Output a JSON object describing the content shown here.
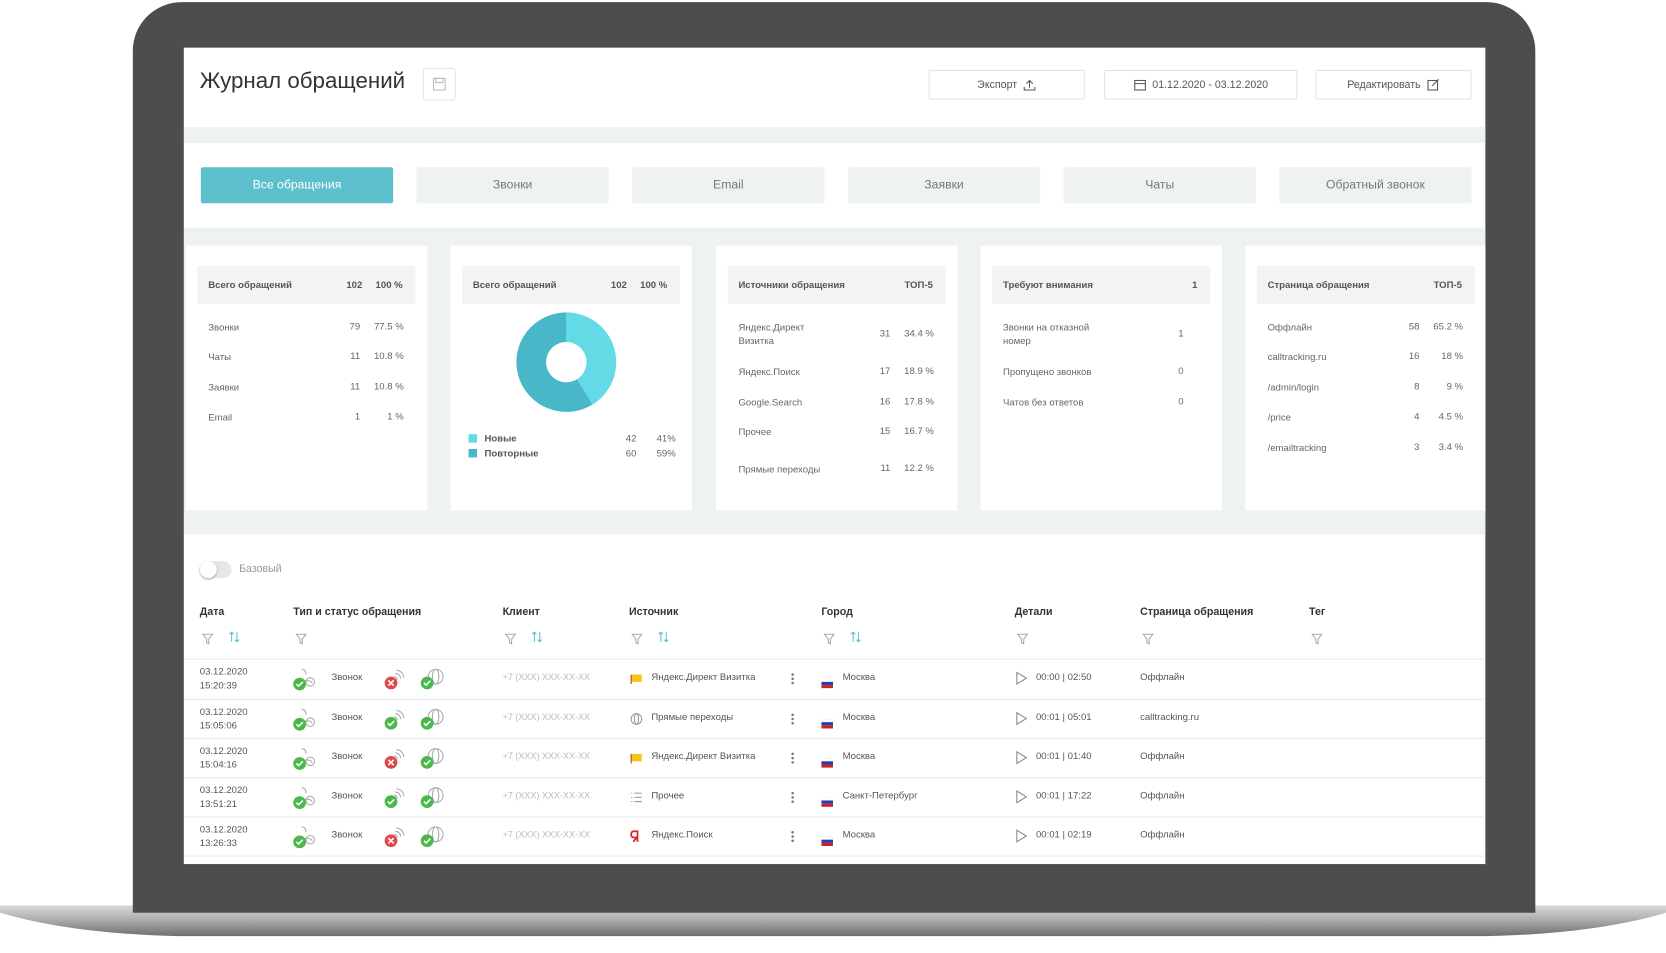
{
  "header": {
    "title": "Журнал обращений",
    "export": "Экспорт",
    "date_range": "01.12.2020 - 03.12.2020",
    "edit": "Редактировать"
  },
  "tabs": [
    "Все обращения",
    "Звонки",
    "Email",
    "Заявки",
    "Чаты",
    "Обратный звонок"
  ],
  "cards": [
    {
      "title": "Всего обращений",
      "count": 102,
      "percent": "100 %",
      "rows": [
        {
          "label": "Звонки",
          "count": 79,
          "percent": "77.5 %"
        },
        {
          "label": "Чаты",
          "count": 11,
          "percent": "10.8 %"
        },
        {
          "label": "Заявки",
          "count": 11,
          "percent": "10.8 %"
        },
        {
          "label": "Email",
          "count": 1,
          "percent": "1 %"
        }
      ]
    },
    {
      "title": "Всего обращений",
      "count": 102,
      "percent": "100 %",
      "donut": [
        {
          "label": "Новые",
          "count": 42,
          "percent": "41%",
          "color": "#63dbe7"
        },
        {
          "label": "Повторные",
          "count": 60,
          "percent": "59%",
          "color": "#48b7c7"
        }
      ]
    },
    {
      "title": "Источники обращения",
      "count": "ТОП-5",
      "rows": [
        {
          "label": "Яндекс.Директ Визитка",
          "count": 31,
          "percent": "34.4 %"
        },
        {
          "label": "Яндекс.Поиск",
          "count": 17,
          "percent": "18.9 %"
        },
        {
          "label": "Google.Search",
          "count": 16,
          "percent": "17.8 %"
        },
        {
          "label": "Прочее",
          "count": 15,
          "percent": "16.7 %"
        },
        {
          "label": "Прямые переходы",
          "count": 11,
          "percent": "12.2 %"
        }
      ]
    },
    {
      "title": "Требуют внимания",
      "count": 1,
      "rows": [
        {
          "label": "Звонки на отказной номер",
          "count": 1
        },
        {
          "label": "Пропущено звонков",
          "count": 0
        },
        {
          "label": "Чатов без ответов",
          "count": 0
        }
      ]
    },
    {
      "title": "Страница обращения",
      "count": "ТОП-5",
      "rows": [
        {
          "label": "Оффлайн",
          "count": 58,
          "percent": "65.2 %"
        },
        {
          "label": "calltracking.ru",
          "count": 16,
          "percent": "18 %"
        },
        {
          "label": "/admin/login",
          "count": 8,
          "percent": "9 %"
        },
        {
          "label": "/price",
          "count": 4,
          "percent": "4.5 %"
        },
        {
          "label": "/emailtracking",
          "count": 3,
          "percent": "3.4 %"
        }
      ]
    }
  ],
  "table": {
    "toggle": "Базовый",
    "columns": [
      "Дата",
      "Тип и статус обращения",
      "Клиент",
      "Источник",
      "Город",
      "Детали",
      "Страница обращения",
      "Тег"
    ],
    "rows": [
      {
        "date": "03.12.2020",
        "time": "15:20:39",
        "type": "Звонок",
        "client": "+7 (XXX) XXX-XX-XX",
        "source": "Яндекс.Директ Визитка",
        "city": "Москва",
        "details": "00:00 | 02:50",
        "page": "Оффлайн"
      },
      {
        "date": "03.12.2020",
        "time": "15:05:06",
        "type": "Звонок",
        "client": "+7 (XXX) XXX-XX-XX",
        "source": "Прямые переходы",
        "city": "Москва",
        "details": "00:01 | 05:01",
        "page": "calltracking.ru"
      },
      {
        "date": "03.12.2020",
        "time": "15:04:16",
        "type": "Звонок",
        "client": "+7 (XXX) XXX-XX-XX",
        "source": "Яндекс.Директ Визитка",
        "city": "Москва",
        "details": "00:01 | 01:40",
        "page": "Оффлайн"
      },
      {
        "date": "03.12.2020",
        "time": "13:51:21",
        "type": "Звонок",
        "client": "+7 (XXX) XXX-XX-XX",
        "source": "Прочее",
        "city": "Санкт-Петербург",
        "details": "00:01 | 17:22",
        "page": "Оффлайн"
      },
      {
        "date": "03.12.2020",
        "time": "13:26:33",
        "type": "Звонок",
        "client": "+7 (XXX) XXX-XX-XX",
        "source": "Яндекс.Поиск",
        "city": "Москва",
        "details": "00:01 | 02:19",
        "page": "Оффлайн"
      }
    ]
  }
}
